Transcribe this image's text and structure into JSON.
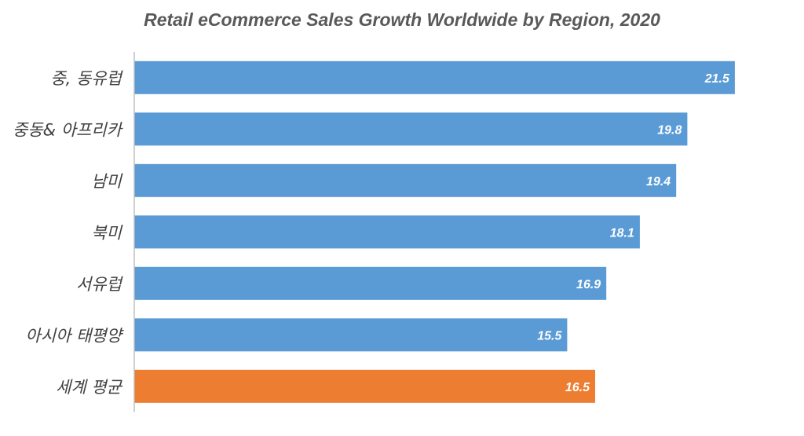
{
  "chart_data": {
    "type": "bar",
    "orientation": "horizontal",
    "title": "Retail eCommerce Sales Growth Worldwide by Region, 2020",
    "categories": [
      "중, 동유럽",
      "중동& 아프리카",
      "남미",
      "북미",
      "서유럽",
      "아시아 태평양",
      "세계 평균"
    ],
    "values": [
      21.5,
      19.8,
      19.4,
      18.1,
      16.9,
      15.5,
      16.5
    ],
    "value_labels": [
      "21.5",
      "19.8",
      "19.4",
      "18.1",
      "16.9",
      "15.5",
      "16.5"
    ],
    "xlim": [
      0,
      22.6
    ],
    "grid": false,
    "colors": {
      "default": "#5B9BD5",
      "highlight": "#ED7D31",
      "highlight_category": "세계 평균",
      "axis": "#BFBFBF",
      "label": "#404040",
      "title": "#595959"
    }
  }
}
